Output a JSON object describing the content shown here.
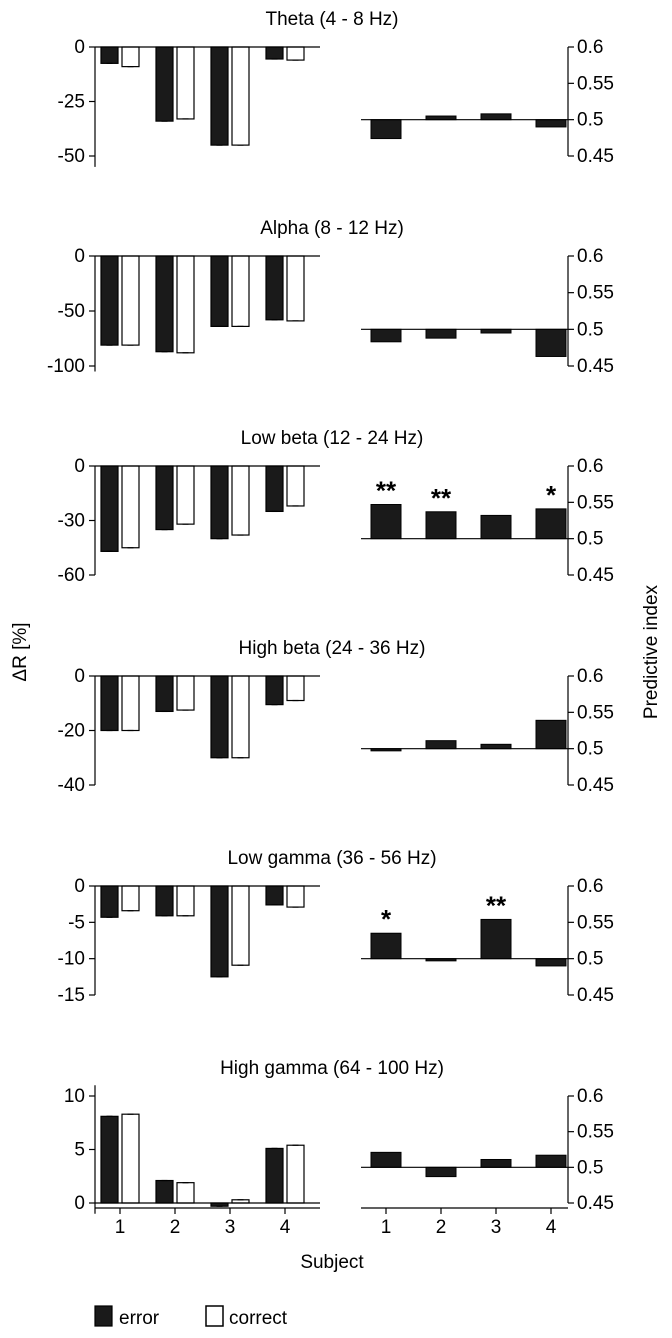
{
  "figure": {
    "left_ylabel": "ΔR [%]",
    "right_ylabel": "Predictive index",
    "xlabel": "Subject"
  },
  "legend": {
    "error_label": "error",
    "correct_label": "correct",
    "error_color": "#1a1a1a",
    "correct_color": "#ffffff"
  },
  "chart_data": [
    {
      "title": "Theta (4 - 8 Hz)",
      "left": {
        "type": "bar",
        "categories": [
          "1",
          "2",
          "3",
          "4"
        ],
        "ylim": [
          -55,
          0
        ],
        "yticks": [
          0,
          -25,
          -50
        ],
        "series": [
          {
            "name": "error",
            "values": [
              -7.5,
              -34,
              -45,
              -5.5
            ]
          },
          {
            "name": "correct",
            "values": [
              -9,
              -33,
              -45,
              -6
            ]
          }
        ]
      },
      "right": {
        "type": "bar",
        "categories": [
          "1",
          "2",
          "3",
          "4"
        ],
        "ylim": [
          0.45,
          0.6
        ],
        "yticks": [
          0.6,
          0.55,
          0.5,
          0.45
        ],
        "baseline": 0.5,
        "values": [
          0.474,
          0.505,
          0.508,
          0.49
        ],
        "significance": [
          "",
          "",
          "",
          ""
        ]
      }
    },
    {
      "title": "Alpha (8 - 12 Hz)",
      "left": {
        "type": "bar",
        "categories": [
          "1",
          "2",
          "3",
          "4"
        ],
        "ylim": [
          -105,
          0
        ],
        "yticks": [
          0,
          -50,
          -100
        ],
        "series": [
          {
            "name": "error",
            "values": [
              -81,
              -87,
              -64,
              -58
            ]
          },
          {
            "name": "correct",
            "values": [
              -81,
              -88,
              -64,
              -59
            ]
          }
        ]
      },
      "right": {
        "type": "bar",
        "categories": [
          "1",
          "2",
          "3",
          "4"
        ],
        "ylim": [
          0.45,
          0.6
        ],
        "yticks": [
          0.6,
          0.55,
          0.5,
          0.45
        ],
        "baseline": 0.5,
        "values": [
          0.483,
          0.488,
          0.495,
          0.463
        ],
        "significance": [
          "",
          "",
          "",
          ""
        ]
      }
    },
    {
      "title": "Low beta (12 - 24 Hz)",
      "left": {
        "type": "bar",
        "categories": [
          "1",
          "2",
          "3",
          "4"
        ],
        "ylim": [
          -60,
          0
        ],
        "yticks": [
          0,
          -30,
          -60
        ],
        "series": [
          {
            "name": "error",
            "values": [
              -47,
              -35,
              -40,
              -25
            ]
          },
          {
            "name": "correct",
            "values": [
              -45,
              -32,
              -38,
              -22
            ]
          }
        ]
      },
      "right": {
        "type": "bar",
        "categories": [
          "1",
          "2",
          "3",
          "4"
        ],
        "ylim": [
          0.45,
          0.6
        ],
        "yticks": [
          0.6,
          0.55,
          0.5,
          0.45
        ],
        "baseline": 0.5,
        "values": [
          0.547,
          0.537,
          0.532,
          0.541
        ],
        "significance": [
          "**",
          "**",
          "",
          "*"
        ]
      }
    },
    {
      "title": "High beta (24 - 36 Hz)",
      "left": {
        "type": "bar",
        "categories": [
          "1",
          "2",
          "3",
          "4"
        ],
        "ylim": [
          -40,
          0
        ],
        "yticks": [
          0,
          -20,
          -40
        ],
        "series": [
          {
            "name": "error",
            "values": [
              -20,
              -13,
              -30,
              -10.5
            ]
          },
          {
            "name": "correct",
            "values": [
              -20,
              -12.5,
              -30,
              -9
            ]
          }
        ]
      },
      "right": {
        "type": "bar",
        "categories": [
          "1",
          "2",
          "3",
          "4"
        ],
        "ylim": [
          0.45,
          0.6
        ],
        "yticks": [
          0.6,
          0.55,
          0.5,
          0.45
        ],
        "baseline": 0.5,
        "values": [
          0.497,
          0.511,
          0.506,
          0.539
        ],
        "significance": [
          "",
          "",
          "",
          ""
        ]
      }
    },
    {
      "title": "Low gamma (36 - 56 Hz)",
      "left": {
        "type": "bar",
        "categories": [
          "1",
          "2",
          "3",
          "4"
        ],
        "ylim": [
          -15,
          0
        ],
        "yticks": [
          0,
          -5,
          -10,
          -15
        ],
        "series": [
          {
            "name": "error",
            "values": [
              -4.3,
              -4.1,
              -12.5,
              -2.6
            ]
          },
          {
            "name": "correct",
            "values": [
              -3.4,
              -4.1,
              -10.9,
              -2.9
            ]
          }
        ]
      },
      "right": {
        "type": "bar",
        "categories": [
          "1",
          "2",
          "3",
          "4"
        ],
        "ylim": [
          0.45,
          0.6
        ],
        "yticks": [
          0.6,
          0.55,
          0.5,
          0.45
        ],
        "baseline": 0.5,
        "values": [
          0.535,
          0.497,
          0.554,
          0.49
        ],
        "significance": [
          "*",
          "",
          "**",
          ""
        ]
      }
    },
    {
      "title": "High gamma (64 - 100 Hz)",
      "left": {
        "type": "bar",
        "categories": [
          "1",
          "2",
          "3",
          "4"
        ],
        "ylim": [
          -1,
          12
        ],
        "yticks": [
          10,
          5,
          0
        ],
        "series": [
          {
            "name": "error",
            "values": [
              8.1,
              2.1,
              -0.3,
              5.1
            ]
          },
          {
            "name": "correct",
            "values": [
              8.3,
              1.9,
              0.3,
              5.4
            ]
          }
        ]
      },
      "right": {
        "type": "bar",
        "categories": [
          "1",
          "2",
          "3",
          "4"
        ],
        "ylim": [
          0.45,
          0.6
        ],
        "yticks": [
          0.6,
          0.55,
          0.5,
          0.45
        ],
        "baseline": 0.5,
        "values": [
          0.521,
          0.487,
          0.511,
          0.517
        ],
        "significance": [
          "",
          "",
          "",
          ""
        ]
      }
    }
  ]
}
